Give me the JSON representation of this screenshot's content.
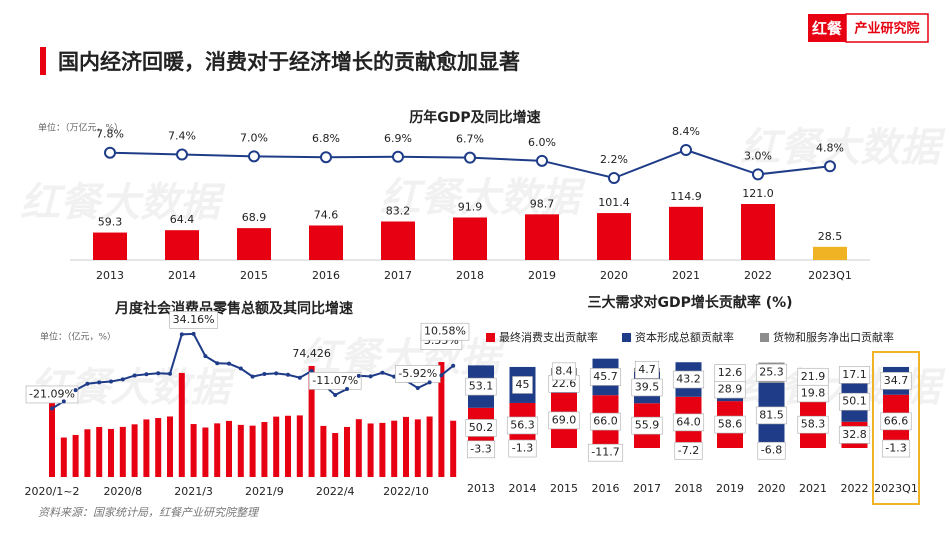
{
  "header": {
    "logo_brand": "红餐",
    "logo_unit": "产业研究院",
    "title": "国内经济回暖，消费对于经济增长的贡献愈加显著"
  },
  "watermark": "红餐大数据",
  "source": "资料来源：国家统计局，红餐产业研究院整理",
  "chart_data": [
    {
      "type": "bar_line",
      "title": "历年GDP及同比增速",
      "unit": "单位：（万亿元，%）",
      "categories": [
        "2013",
        "2014",
        "2015",
        "2016",
        "2017",
        "2018",
        "2019",
        "2020",
        "2021",
        "2022",
        "2023Q1"
      ],
      "series": [
        {
          "type": "bar",
          "colors": [
            "#e60012",
            "#e60012",
            "#e60012",
            "#e60012",
            "#e60012",
            "#e60012",
            "#e60012",
            "#e60012",
            "#e60012",
            "#e60012",
            "#f0b323"
          ],
          "values": [
            59.3,
            64.4,
            68.9,
            74.6,
            83.2,
            91.9,
            98.7,
            101.4,
            114.9,
            121.0,
            28.5
          ],
          "value_labels": [
            "59.3",
            "64.4",
            "68.9",
            "74.6",
            "83.2",
            "91.9",
            "98.7",
            "101.4",
            "114.9",
            "121.0",
            "28.5"
          ]
        },
        {
          "type": "line",
          "color": "#1f3c88",
          "values": [
            7.8,
            7.4,
            7.0,
            6.8,
            6.9,
            6.7,
            6.0,
            2.2,
            8.4,
            3.0,
            4.8
          ],
          "value_labels": [
            "7.8%",
            "7.4%",
            "7.0%",
            "6.8%",
            "6.9%",
            "6.7%",
            "6.0%",
            "2.2%",
            "8.4%",
            "3.0%",
            "4.8%"
          ]
        }
      ]
    },
    {
      "type": "bar_line_monthly",
      "title": "月度社会消费品零售总额及其同比增速",
      "unit": "单位：（亿元，%）",
      "categories": [
        "2020/1~2",
        null,
        null,
        null,
        null,
        null,
        "2020/8",
        null,
        null,
        null,
        null,
        null,
        "2021/3",
        null,
        null,
        null,
        null,
        null,
        "2021/9",
        null,
        null,
        null,
        null,
        null,
        "2022/4",
        null,
        null,
        null,
        null,
        null,
        "2022/10",
        null,
        null,
        null,
        null
      ],
      "series": [
        {
          "type": "bar",
          "color": "#e60012",
          "values": [
            52130,
            26450,
            28178,
            31973,
            33526,
            32203,
            33571,
            35295,
            38576,
            39514,
            40566,
            69737,
            35484,
            33153,
            35945,
            37586,
            34925,
            34395,
            36833,
            40454,
            41043,
            41269,
            74426,
            34233,
            29483,
            33547,
            38742,
            35870,
            36258,
            37745,
            40271,
            38615,
            40542,
            77067,
            37715
          ],
          "value_labels": [
            null,
            null,
            null,
            null,
            null,
            null,
            null,
            null,
            null,
            null,
            null,
            null,
            null,
            null,
            null,
            null,
            null,
            null,
            null,
            null,
            null,
            null,
            "74,426",
            null,
            null,
            null,
            null,
            null,
            null,
            null,
            null,
            null,
            null,
            null,
            null
          ]
        },
        {
          "type": "line",
          "color": "#1f3c88",
          "values": [
            -21.09,
            -15.8,
            -7.5,
            -2.8,
            -1.8,
            -1.1,
            0.5,
            3.3,
            4.3,
            5.0,
            4.6,
            33.8,
            34.16,
            17.7,
            12.4,
            12.1,
            8.5,
            2.5,
            4.4,
            4.9,
            3.9,
            1.7,
            6.7,
            -3.5,
            -11.07,
            -6.7,
            3.1,
            2.7,
            5.4,
            2.5,
            -0.5,
            -5.92,
            -1.8,
            3.55,
            10.58
          ],
          "value_labels": [
            "-21.09%",
            null,
            null,
            null,
            null,
            null,
            null,
            null,
            null,
            null,
            null,
            null,
            "34.16%",
            null,
            null,
            null,
            null,
            null,
            null,
            null,
            null,
            null,
            null,
            null,
            "-11.07%",
            null,
            null,
            null,
            null,
            null,
            null,
            "-5.92%",
            null,
            "3.55%",
            "10.58%"
          ]
        }
      ]
    },
    {
      "type": "stacked_bar",
      "title": "三大需求对GDP增长贡献率 (%)",
      "categories": [
        "2013",
        "2014",
        "2015",
        "2016",
        "2017",
        "2018",
        "2019",
        "2020",
        "2021",
        "2022",
        "2023Q1"
      ],
      "highlight_category": "2023Q1",
      "highlight_color": "#f0b323",
      "series": [
        {
          "name": "最终消费支出贡献率",
          "color": "#e60012",
          "values": [
            50.2,
            56.3,
            69.0,
            66.0,
            55.9,
            64.0,
            58.6,
            -6.8,
            58.3,
            32.8,
            66.6
          ],
          "value_labels": [
            "50.2",
            "56.3",
            "69.0",
            "66.0",
            "55.9",
            "64.0",
            "58.6",
            "-6.8",
            "58.3",
            "32.8",
            "66.6"
          ]
        },
        {
          "name": "资本形成总额贡献率",
          "color": "#1f3c88",
          "values": [
            53.1,
            45,
            22.6,
            45.7,
            39.5,
            43.2,
            28.9,
            81.5,
            19.8,
            50.1,
            34.7
          ],
          "value_labels": [
            "53.1",
            "45",
            "22.6",
            "45.7",
            "39.5",
            "43.2",
            "28.9",
            "81.5",
            "19.8",
            "50.1",
            "34.7"
          ]
        },
        {
          "name": "货物和服务净出口贡献率",
          "color": "#8c8c8c",
          "values": [
            -3.3,
            -1.3,
            8.4,
            -11.7,
            4.7,
            -7.2,
            12.6,
            25.3,
            21.9,
            17.1,
            -1.3
          ],
          "value_labels": [
            "-3.3",
            "-1.3",
            "8.4",
            "-11.7",
            "4.7",
            "-7.2",
            "12.6",
            "25.3",
            "21.9",
            "17.1",
            "-1.3"
          ]
        }
      ]
    }
  ]
}
